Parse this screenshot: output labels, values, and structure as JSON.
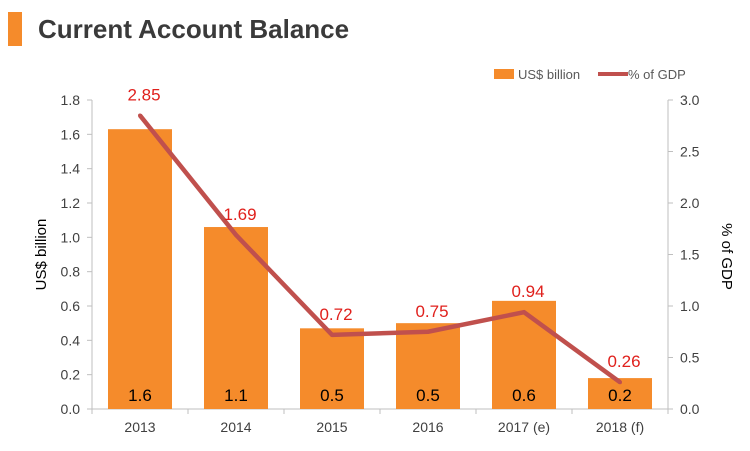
{
  "title": "Current Account Balance",
  "colors": {
    "accent": "#f58b2b",
    "bar": "#f58b2b",
    "line": "#c0504d",
    "line_label": "#e0201c"
  },
  "chart_data": {
    "type": "bar",
    "categories": [
      "2013",
      "2014",
      "2015",
      "2016",
      "2017 (e)",
      "2018 (f)"
    ],
    "series": [
      {
        "name": "US$ billion",
        "type": "bar",
        "axis": "left",
        "values": [
          1.63,
          1.06,
          0.47,
          0.5,
          0.63,
          0.18
        ],
        "labels": [
          "1.6",
          "1.1",
          "0.5",
          "0.5",
          "0.6",
          "0.2"
        ]
      },
      {
        "name": "% of GDP",
        "type": "line",
        "axis": "right",
        "values": [
          2.85,
          1.69,
          0.72,
          0.75,
          0.94,
          0.26
        ],
        "labels": [
          "2.85",
          "1.69",
          "0.72",
          "0.75",
          "0.94",
          "0.26"
        ]
      }
    ],
    "ylabel": "US$ billion",
    "y2label": "% of GDP",
    "ylim": [
      0,
      1.8
    ],
    "y2lim": [
      0,
      3.0
    ],
    "yticks": [
      "0.0",
      "0.2",
      "0.4",
      "0.6",
      "0.8",
      "1.0",
      "1.2",
      "1.4",
      "1.6",
      "1.8"
    ],
    "y2ticks": [
      "0.0",
      "0.5",
      "1.0",
      "1.5",
      "2.0",
      "2.5",
      "3.0"
    ],
    "legend": "top-right",
    "grid": false
  }
}
